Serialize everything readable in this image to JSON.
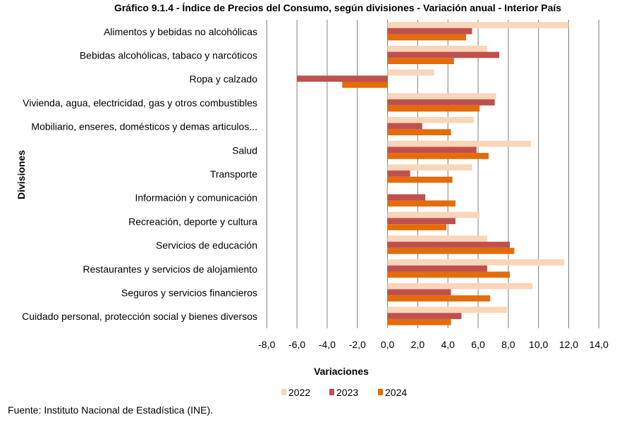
{
  "chart_data": {
    "type": "bar",
    "orientation": "horizontal",
    "title": "Gráfico 9.1.4 - Índice de Precios del Consumo, según divisiones - Variación  anual - Interior País",
    "xlabel": "Variaciones",
    "ylabel": "Divisiones",
    "xlim": [
      -8,
      14
    ],
    "xticks": [
      -8,
      -6,
      -4,
      -2,
      0,
      2,
      4,
      6,
      8,
      10,
      12,
      14
    ],
    "xtick_labels": [
      "-8,0",
      "-6,0",
      "-4,0",
      "-2,0",
      "0,0",
      "2,0",
      "4,0",
      "6,0",
      "8,0",
      "10,0",
      "12,0",
      "14,0"
    ],
    "grid": "vertical",
    "legend_position": "bottom",
    "categories": [
      "Alimentos y bebidas no alcohólicas",
      "Bebidas alcohólicas, tabaco y narcóticos",
      "Ropa y calzado",
      "Vivienda, agua, electricidad, gas y otros combustibles",
      "Mobiliario, enseres, domésticos y demas articulos...",
      "Salud",
      "Transporte",
      "Información y comunicación",
      "Recreación, deporte y cultura",
      "Servicios de educación",
      "Restaurantes y servicios de alojamiento",
      "Seguros y servicios financieros",
      "Cuidado personal, protección social y bienes diversos"
    ],
    "series": [
      {
        "name": "2022",
        "color": "#FAD5B8",
        "values": [
          12.0,
          6.6,
          3.1,
          7.2,
          5.7,
          9.5,
          5.6,
          -0.1,
          6.1,
          6.6,
          11.7,
          9.6,
          7.9
        ]
      },
      {
        "name": "2023",
        "color": "#C0504D",
        "values": [
          5.6,
          7.4,
          -6.0,
          7.1,
          2.3,
          5.9,
          1.5,
          2.5,
          4.5,
          8.1,
          6.6,
          4.2,
          4.9
        ]
      },
      {
        "name": "2024",
        "color": "#E46C0A",
        "values": [
          5.2,
          4.4,
          -3.0,
          6.1,
          4.2,
          6.7,
          4.3,
          4.5,
          3.9,
          8.4,
          8.1,
          6.8,
          4.2
        ]
      }
    ]
  },
  "source": "Fuente: Instituto Nacional de Estadística (INE).",
  "colors": {
    "gridline": "#808080"
  }
}
